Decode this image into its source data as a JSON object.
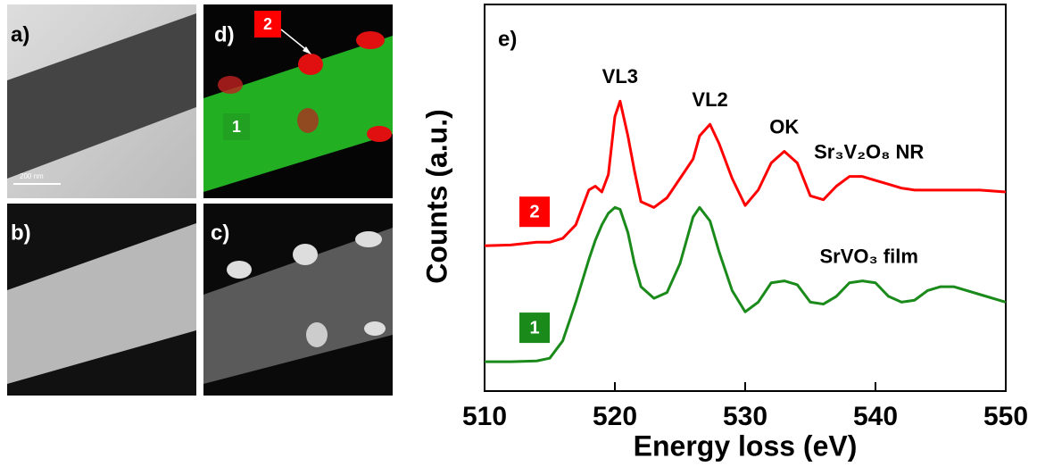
{
  "panels": [
    {
      "label": "a)",
      "scale_bar": "200 nm"
    },
    {
      "label": "d)",
      "markers": [
        "2",
        "1"
      ]
    },
    {
      "label": "b)"
    },
    {
      "label": "c)"
    }
  ],
  "chart_data": {
    "type": "line",
    "panel_label": "e)",
    "x_label": "Energy loss (eV)",
    "y_label": "Counts (a.u.)",
    "x": [
      510,
      512,
      514,
      515,
      516,
      517,
      518,
      518.5,
      519,
      519.5,
      520,
      520.4,
      521,
      521.5,
      522,
      523,
      524,
      525,
      526,
      526.5,
      527.3,
      528,
      529,
      530,
      531,
      532,
      533,
      534,
      535,
      536,
      537,
      538,
      539,
      540,
      541,
      542,
      543,
      544,
      545,
      546,
      548,
      550
    ],
    "series": [
      {
        "name": "2",
        "color": "#ff0000",
        "values": [
          3.76,
          3.78,
          3.85,
          3.85,
          3.95,
          4.3,
          5.2,
          5.3,
          5.15,
          5.6,
          7.1,
          7.5,
          6.6,
          5.7,
          4.9,
          4.75,
          5.0,
          5.5,
          6.0,
          6.6,
          6.9,
          6.4,
          5.5,
          4.8,
          5.2,
          5.9,
          6.2,
          5.9,
          5.05,
          4.95,
          5.3,
          5.55,
          5.55,
          5.45,
          5.35,
          5.25,
          5.2,
          5.2,
          5.2,
          5.2,
          5.2,
          5.15
        ]
      },
      {
        "name": "1",
        "color": "#1a8a1a",
        "values": [
          0.76,
          0.76,
          0.78,
          0.85,
          1.3,
          2.3,
          3.4,
          3.9,
          4.3,
          4.6,
          4.75,
          4.7,
          4.1,
          3.3,
          2.7,
          2.4,
          2.55,
          3.3,
          4.5,
          4.75,
          4.4,
          3.6,
          2.6,
          2.05,
          2.3,
          2.8,
          2.85,
          2.75,
          2.3,
          2.25,
          2.45,
          2.8,
          2.85,
          2.8,
          2.45,
          2.3,
          2.35,
          2.6,
          2.7,
          2.7,
          2.5,
          2.3
        ]
      }
    ],
    "annotations": [
      {
        "text": "VL3",
        "x": 520.4,
        "y": 7.5
      },
      {
        "text": "VL2",
        "x": 527.3,
        "y": 6.9
      },
      {
        "text": "OK",
        "x": 533,
        "y": 6.2
      },
      {
        "text": "Sr₃V₂O₈ NR",
        "x": 539.5,
        "y": 5.55
      },
      {
        "text": "SrVO₃ film",
        "x": 539.5,
        "y": 2.85
      }
    ],
    "xlim": [
      510,
      550
    ],
    "ylim": [
      0,
      10
    ],
    "xticks": [
      510,
      520,
      530,
      540,
      550
    ]
  }
}
